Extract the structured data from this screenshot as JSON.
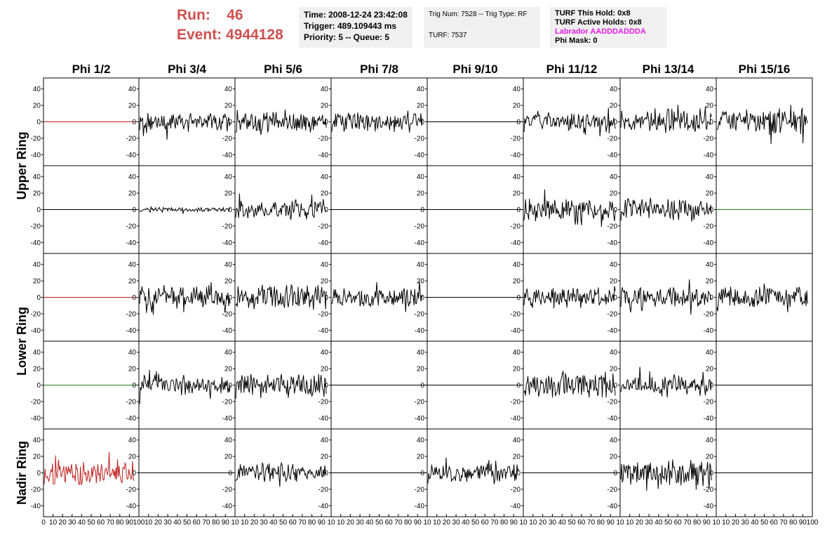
{
  "header": {
    "run_label": "Run:",
    "run_value": "46",
    "event_label": "Event:",
    "event_value": "4944128",
    "time": "Time: 2008-12-24 23:42:08",
    "trigger": "Trigger: 489.109443 ms",
    "priority": "Priority: 5 -- Queue: 5",
    "trig_num": "Trig Num: 7528 -- Trig Type: RF",
    "turf": "TURF: 7537",
    "turf_this_hold": "TURF This Hold: 0x8",
    "turf_active_holds": "TURF Active Holds: 0x8",
    "labrador": "Labrador AADDDADDDA",
    "phi_mask": "Phi Mask: 0"
  },
  "colors": {
    "run_text": "#cf5050",
    "labrador_text": "#e020e0",
    "trace_black": "#000000",
    "trace_red": "#c02020",
    "trace_green": "#208020",
    "info_bg": "#f0f0f0"
  },
  "chart_data": {
    "type": "line",
    "columns": [
      "Phi 1/2",
      "Phi 3/4",
      "Phi 5/6",
      "Phi 7/8",
      "Phi 9/10",
      "Phi 11/12",
      "Phi 13/14",
      "Phi 15/16"
    ],
    "row_labels": [
      "Upper Ring",
      "Lower Ring",
      "Nadir Ring"
    ],
    "ylim": [
      -50,
      50
    ],
    "yticks": [
      -40,
      -20,
      0,
      20,
      40
    ],
    "xlim": [
      0,
      100
    ],
    "xticks_first": [
      "0",
      "10",
      "20",
      "30",
      "40",
      "50",
      "60",
      "70",
      "80",
      "90",
      "100"
    ],
    "xticks_other": [
      "10",
      "20",
      "30",
      "40",
      "50",
      "60",
      "70",
      "80",
      "90",
      "10"
    ],
    "xticks_last": [
      "10",
      "20",
      "30",
      "40",
      "50",
      "60",
      "70",
      "80",
      "90",
      "100"
    ],
    "panels": [
      [
        {
          "c": "red",
          "a": 0
        },
        {
          "c": "black",
          "a": 13
        },
        {
          "c": "black",
          "a": 16
        },
        {
          "c": "black",
          "a": 14
        },
        {
          "c": "black",
          "a": 0
        },
        {
          "c": "black",
          "a": 13
        },
        {
          "c": "black",
          "a": 16
        },
        {
          "c": "black",
          "a": 20
        }
      ],
      [
        {
          "c": "black",
          "a": 0
        },
        {
          "c": "black",
          "a": 3
        },
        {
          "c": "black",
          "a": 14
        },
        {
          "c": "black",
          "a": 0
        },
        {
          "c": "black",
          "a": 0
        },
        {
          "c": "black",
          "a": 16
        },
        {
          "c": "black",
          "a": 16
        },
        {
          "c": "green",
          "a": 0
        }
      ],
      [
        {
          "c": "red",
          "a": 0
        },
        {
          "c": "black",
          "a": 15
        },
        {
          "c": "black",
          "a": 17
        },
        {
          "c": "black",
          "a": 14
        },
        {
          "c": "black",
          "a": 0
        },
        {
          "c": "black",
          "a": 14
        },
        {
          "c": "black",
          "a": 16
        },
        {
          "c": "black",
          "a": 16
        }
      ],
      [
        {
          "c": "green",
          "a": 0
        },
        {
          "c": "black",
          "a": 14
        },
        {
          "c": "black",
          "a": 17
        },
        {
          "c": "black",
          "a": 0
        },
        {
          "c": "black",
          "a": 0
        },
        {
          "c": "black",
          "a": 17
        },
        {
          "c": "black",
          "a": 14
        },
        {
          "c": "black",
          "a": 0
        }
      ],
      [
        {
          "c": "red",
          "a": 18
        },
        {
          "c": "black",
          "a": 0
        },
        {
          "c": "black",
          "a": 12
        },
        {
          "c": "black",
          "a": 0
        },
        {
          "c": "black",
          "a": 14
        },
        {
          "c": "black",
          "a": 0
        },
        {
          "c": "black",
          "a": 17
        },
        {
          "c": "black",
          "a": 0
        }
      ]
    ]
  }
}
